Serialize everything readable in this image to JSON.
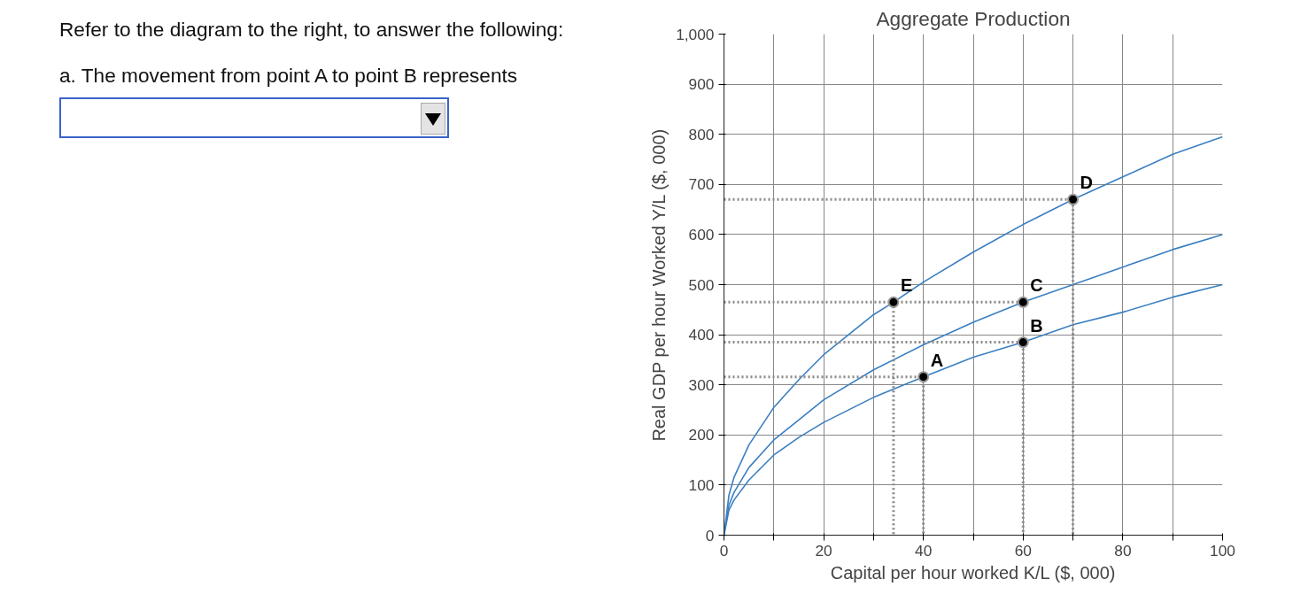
{
  "chart_data": {
    "type": "line",
    "title": "Aggregate Production",
    "xlabel": "Capital per hour worked K/L ($, 000)",
    "ylabel": "Real GDP per hour Worked Y/L ($, 000)",
    "xlim": [
      0,
      100
    ],
    "ylim": [
      0,
      1000
    ],
    "xticks": [
      0,
      {
        "value": 10,
        "label": null
      },
      20,
      {
        "value": 30,
        "label": null
      },
      40,
      {
        "value": 50,
        "label": null
      },
      60,
      {
        "value": 70,
        "label": null
      },
      80,
      {
        "value": 90,
        "label": null
      },
      100
    ],
    "yticks": [
      0,
      100,
      200,
      300,
      400,
      500,
      600,
      700,
      800,
      900,
      {
        "value": 1000,
        "label": "1,000"
      }
    ],
    "grid": true,
    "series": [
      {
        "color": "#3a7fc1",
        "x": [
          0,
          1,
          2,
          5,
          10,
          15,
          20,
          30,
          40,
          50,
          60,
          70,
          80,
          90,
          100
        ],
        "values": [
          0,
          50,
          70,
          110,
          160,
          195,
          225,
          275,
          316,
          355,
          385,
          420,
          445,
          475,
          500
        ]
      },
      {
        "color": "#3a7fc1",
        "x": [
          0,
          1,
          2,
          5,
          10,
          15,
          20,
          30,
          40,
          50,
          60,
          70,
          80,
          90,
          100
        ],
        "values": [
          0,
          60,
          85,
          135,
          190,
          230,
          270,
          330,
          380,
          425,
          465,
          500,
          535,
          570,
          600
        ]
      },
      {
        "color": "#3a7fc1",
        "x": [
          0,
          1,
          2,
          5,
          10,
          15,
          20,
          30,
          34,
          40,
          50,
          60,
          70,
          80,
          90,
          100
        ],
        "values": [
          0,
          80,
          115,
          180,
          255,
          310,
          360,
          440,
          465,
          505,
          565,
          620,
          670,
          715,
          760,
          795
        ]
      },
      {
        "type": "line",
        "color": "#888888",
        "line_style": "dotted",
        "x": [
          0,
          40,
          40
        ],
        "values": [
          316,
          316,
          0
        ]
      },
      {
        "type": "line",
        "color": "#888888",
        "line_style": "dotted",
        "x": [
          0,
          60,
          60
        ],
        "values": [
          385,
          385,
          0
        ]
      },
      {
        "type": "line",
        "color": "#888888",
        "line_style": "dotted",
        "x": [
          0,
          60
        ],
        "values": [
          465,
          465
        ]
      },
      {
        "type": "line",
        "color": "#888888",
        "line_style": "dotted",
        "x": [
          34,
          34
        ],
        "values": [
          465,
          0
        ]
      },
      {
        "type": "line",
        "color": "#888888",
        "line_style": "dotted",
        "x": [
          0,
          70,
          70
        ],
        "values": [
          670,
          670,
          0
        ]
      },
      {
        "type": "scatter",
        "color": "#000000",
        "marker": "circle",
        "x": [
          40,
          60,
          60,
          34,
          70
        ],
        "values": [
          316,
          385,
          465,
          465,
          670
        ]
      }
    ],
    "annotations": [
      "Refer to the diagram to the right, to answer the following:",
      "a. The movement from point A to point B represents",
      {
        "text": "A",
        "x": 40,
        "y": 316
      },
      {
        "text": "B",
        "x": 60,
        "y": 385
      },
      {
        "text": "C",
        "x": 60,
        "y": 465
      },
      {
        "text": "E",
        "x": 34,
        "y": 465
      },
      {
        "text": "D",
        "x": 70,
        "y": 670
      }
    ]
  }
}
